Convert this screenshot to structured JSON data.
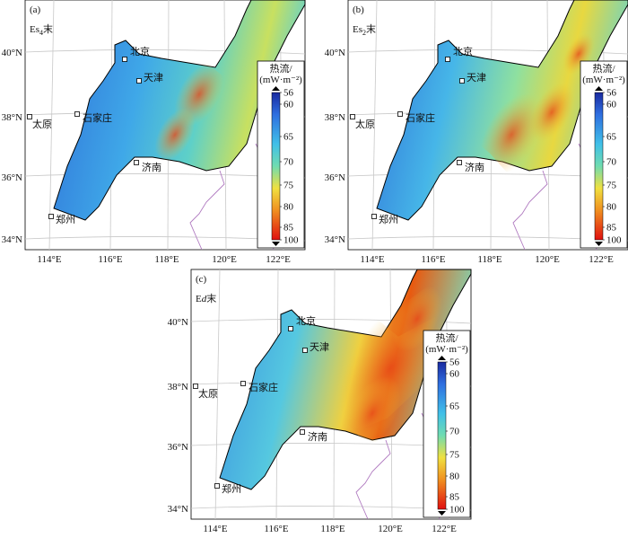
{
  "panels": [
    {
      "label": "(a)",
      "stage": {
        "main": "Es",
        "sub": "4",
        "suffix": "末"
      }
    },
    {
      "label": "(b)",
      "stage": {
        "main": "Es",
        "sub": "2",
        "suffix": "末"
      }
    },
    {
      "label": "(c)",
      "stage": {
        "main": "E",
        "italic": "d",
        "suffix": "末"
      }
    }
  ],
  "lat_labels": [
    "40°N",
    "38°N",
    "36°N",
    "34°N"
  ],
  "lon_labels": [
    "114°E",
    "116°E",
    "118°E",
    "120°E",
    "122°E"
  ],
  "cities": [
    {
      "name": "北京"
    },
    {
      "name": "天津"
    },
    {
      "name": "石家庄"
    },
    {
      "name": "太原"
    },
    {
      "name": "济南"
    },
    {
      "name": "郑州"
    }
  ],
  "legend": {
    "title": "热流/",
    "unit": "(mW·m⁻²)",
    "ticks": [
      56,
      60,
      65,
      70,
      75,
      80,
      85,
      100
    ]
  }
}
